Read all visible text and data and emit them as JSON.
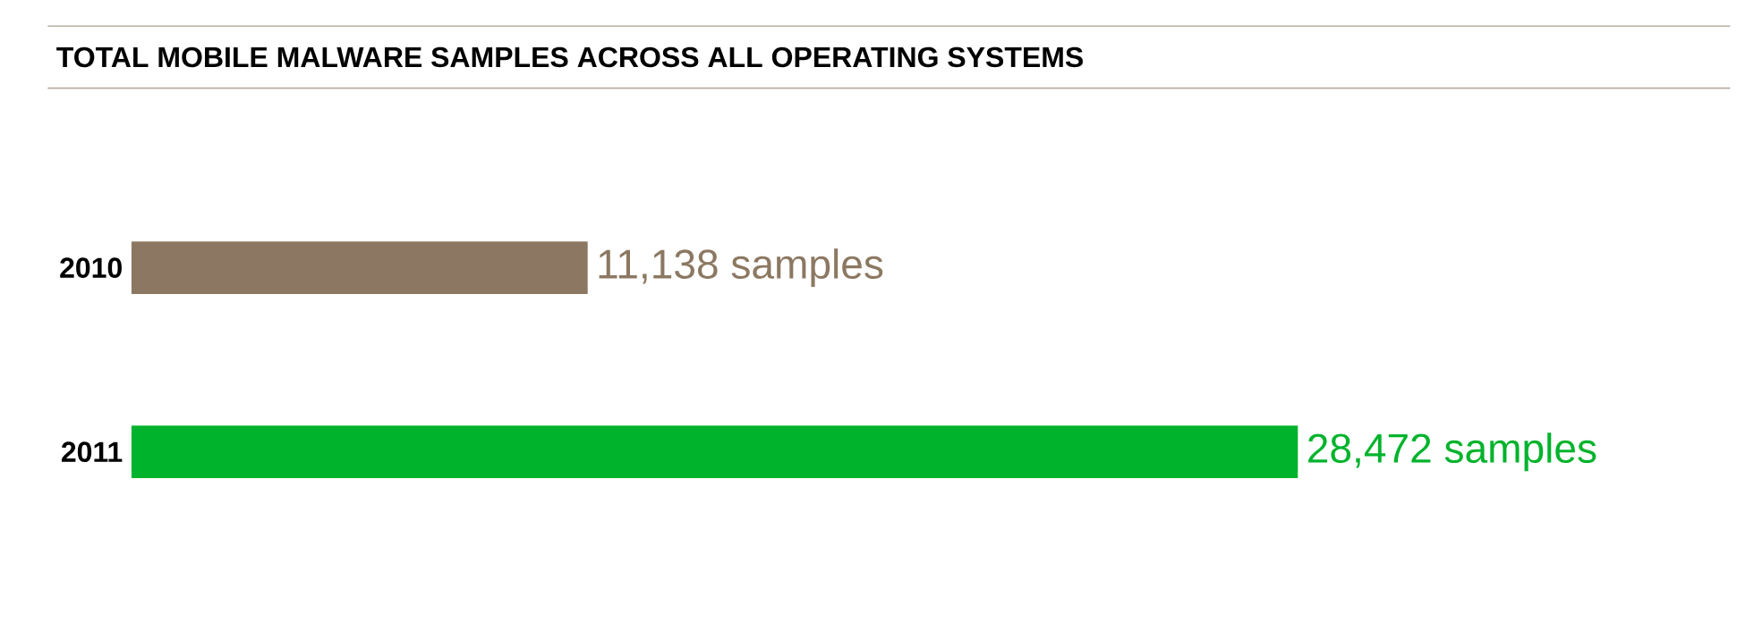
{
  "chart_data": {
    "type": "bar",
    "orientation": "horizontal",
    "title": "TOTAL MOBILE MALWARE SAMPLES ACROSS ALL OPERATING SYSTEMS",
    "categories": [
      "2010",
      "2011"
    ],
    "values": [
      11138,
      28472
    ],
    "colors": [
      "#8c7862",
      "#00b32c"
    ],
    "value_labels": [
      "11,138 samples",
      "28,472 samples"
    ]
  }
}
